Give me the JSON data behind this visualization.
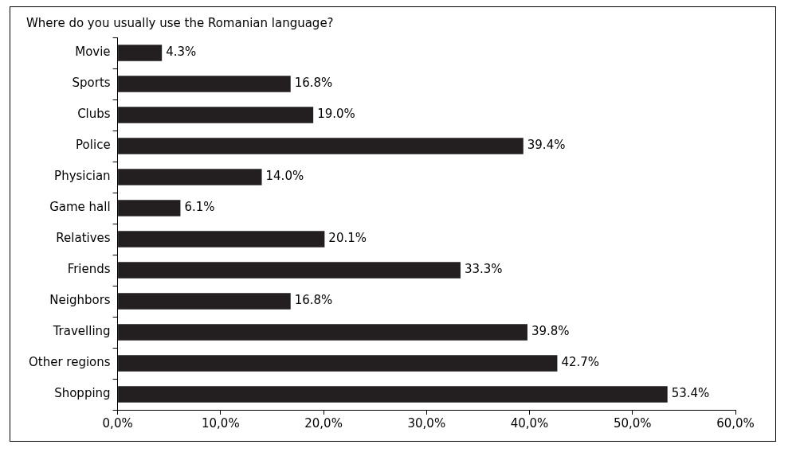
{
  "chart_data": {
    "type": "bar",
    "orientation": "horizontal",
    "title": "Where do you usually use the Romanian language?",
    "categories": [
      "Movie",
      "Sports",
      "Clubs",
      "Police",
      "Physician",
      "Game hall",
      "Relatives",
      "Friends",
      "Neighbors",
      "Travelling",
      "Other regions",
      "Shopping"
    ],
    "values": [
      4.3,
      16.8,
      19.0,
      39.4,
      14.0,
      6.1,
      20.1,
      33.3,
      16.8,
      39.8,
      42.7,
      53.4
    ],
    "value_labels": [
      "4.3%",
      "16.8%",
      "19.0%",
      "39.4%",
      "14.0%",
      "6.1%",
      "20.1%",
      "33.3%",
      "16.8%",
      "39.8%",
      "42.7%",
      "53.4%"
    ],
    "color": "#231f20",
    "xlim": [
      0,
      60
    ],
    "xticks": [
      {
        "value": 0,
        "label": "0,0%"
      },
      {
        "value": 10,
        "label": "10,0%"
      },
      {
        "value": 20,
        "label": "20,0%"
      },
      {
        "value": 30,
        "label": "30,0%"
      },
      {
        "value": 40,
        "label": "40,0%"
      },
      {
        "value": 50,
        "label": "50,0%"
      },
      {
        "value": 60,
        "label": "60,0%"
      }
    ],
    "grid": false,
    "legend": false
  }
}
